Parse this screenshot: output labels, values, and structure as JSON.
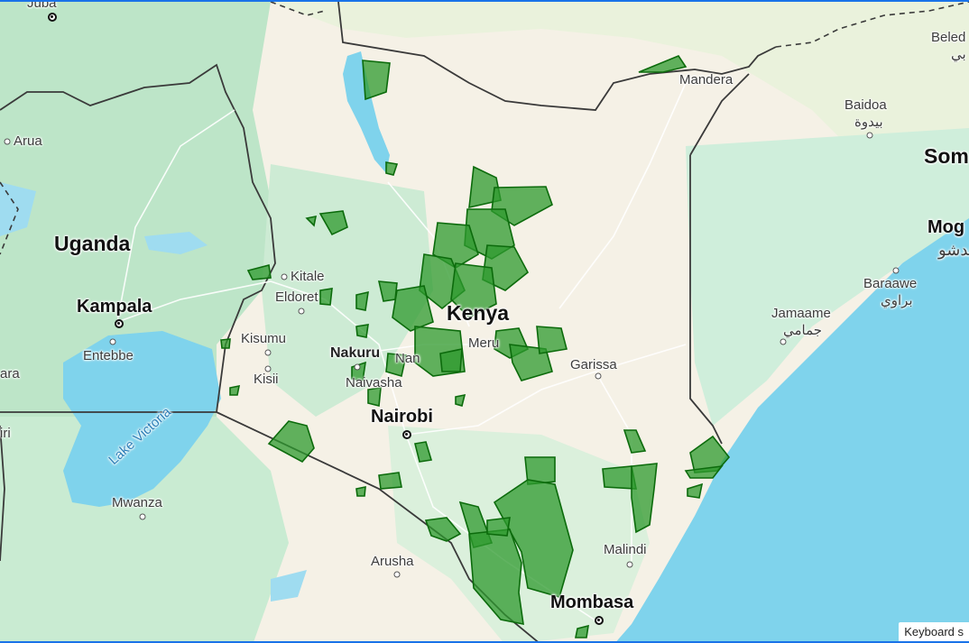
{
  "map": {
    "countries": {
      "uganda": "Uganda",
      "kenya": "Kenya",
      "somalia_partial": "Som"
    },
    "water": {
      "lake_victoria": "Lake Victoria"
    },
    "places": {
      "juba_partial": "Juba",
      "arua": "Arua",
      "kampala": "Kampala",
      "entebbe": "Entebbe",
      "ara_partial": "ara",
      "iri_partial": "iri",
      "kitale": "Kitale",
      "eldoret": "Eldoret",
      "kisumu": "Kisumu",
      "kisii": "Kisii",
      "nakuru": "Nakuru",
      "naivasha": "Naivasha",
      "nyahururu_partial": "Nan",
      "nairobi": "Nairobi",
      "meru": "Meru",
      "garissa": "Garissa",
      "mandera": "Mandera",
      "baidoa": "Baidoa",
      "baidoa_ar": "بيدوة",
      "beled_partial": "Beled",
      "beled_ar_partial": "بي",
      "mogadishu_partial": "Mog",
      "mogadishu_ar_partial": "قدشو",
      "baraawe": "Baraawe",
      "baraawe_ar": "براوي",
      "jamaame": "Jamaame",
      "jamaame_ar": "جمامي",
      "malindi": "Malindi",
      "mombasa": "Mombasa",
      "arusha": "Arusha",
      "mwanza": "Mwanza"
    },
    "overlay_color": "#2e9a2e",
    "overlay_stroke": "#0c6b0c"
  },
  "footer": {
    "keyboard_partial": "Keyboard s"
  }
}
